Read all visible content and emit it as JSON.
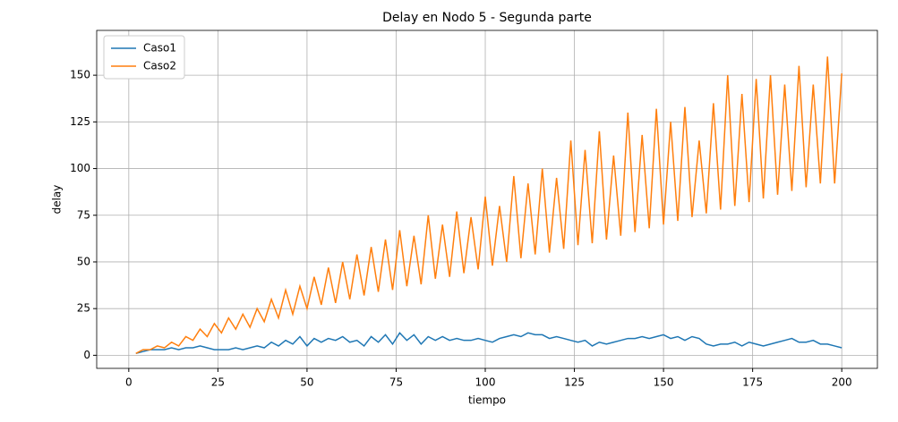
{
  "chart_data": {
    "type": "line",
    "title": "Delay en Nodo 5 - Segunda parte",
    "x_label": "tiempo",
    "y_label": "delay",
    "x": [
      2,
      4,
      6,
      8,
      10,
      12,
      14,
      16,
      18,
      20,
      22,
      24,
      26,
      28,
      30,
      32,
      34,
      36,
      38,
      40,
      42,
      44,
      46,
      48,
      50,
      52,
      54,
      56,
      58,
      60,
      62,
      64,
      66,
      68,
      70,
      72,
      74,
      76,
      78,
      80,
      82,
      84,
      86,
      88,
      90,
      92,
      94,
      96,
      98,
      100,
      102,
      104,
      106,
      108,
      110,
      112,
      114,
      116,
      118,
      120,
      122,
      124,
      126,
      128,
      130,
      132,
      134,
      136,
      138,
      140,
      142,
      144,
      146,
      148,
      150,
      152,
      154,
      156,
      158,
      160,
      162,
      164,
      166,
      168,
      170,
      172,
      174,
      176,
      178,
      180,
      182,
      184,
      186,
      188,
      190,
      192,
      194,
      196,
      198,
      200
    ],
    "series": [
      {
        "name": "Caso1",
        "color": "#1f77b4",
        "values": [
          1,
          2,
          3,
          3,
          3,
          4,
          3,
          4,
          4,
          5,
          4,
          3,
          3,
          3,
          4,
          3,
          4,
          5,
          4,
          7,
          5,
          8,
          6,
          10,
          5,
          9,
          7,
          9,
          8,
          10,
          7,
          8,
          5,
          10,
          7,
          11,
          6,
          12,
          8,
          11,
          6,
          10,
          8,
          10,
          8,
          9,
          8,
          8,
          9,
          8,
          7,
          9,
          10,
          11,
          10,
          12,
          11,
          11,
          9,
          10,
          9,
          8,
          7,
          8,
          5,
          7,
          6,
          7,
          8,
          9,
          9,
          10,
          9,
          10,
          11,
          9,
          10,
          8,
          10,
          9,
          6,
          5,
          6,
          6,
          7,
          5,
          7,
          6,
          5,
          6,
          7,
          8,
          9,
          7,
          7,
          8,
          6,
          6,
          5,
          4
        ]
      },
      {
        "name": "Caso2",
        "color": "#ff7f0e",
        "values": [
          1,
          3,
          3,
          5,
          4,
          7,
          5,
          10,
          8,
          14,
          10,
          17,
          12,
          20,
          14,
          22,
          15,
          25,
          18,
          30,
          20,
          35,
          22,
          37,
          25,
          42,
          27,
          47,
          28,
          50,
          30,
          54,
          32,
          58,
          34,
          62,
          35,
          67,
          37,
          64,
          38,
          75,
          41,
          70,
          42,
          77,
          44,
          74,
          46,
          85,
          48,
          80,
          50,
          96,
          52,
          92,
          54,
          100,
          55,
          95,
          57,
          115,
          59,
          110,
          60,
          120,
          62,
          107,
          64,
          130,
          66,
          118,
          68,
          132,
          70,
          125,
          72,
          133,
          74,
          115,
          76,
          135,
          78,
          150,
          80,
          140,
          82,
          148,
          84,
          150,
          86,
          145,
          88,
          155,
          90,
          145,
          92,
          160,
          92,
          151
        ]
      }
    ],
    "xlim": [
      -9,
      210
    ],
    "ylim": [
      -7,
      174
    ],
    "xticks": [
      0,
      25,
      50,
      75,
      100,
      125,
      150,
      175,
      200
    ],
    "yticks": [
      0,
      25,
      50,
      75,
      100,
      125,
      150
    ],
    "grid": true,
    "legend": "upper left"
  }
}
